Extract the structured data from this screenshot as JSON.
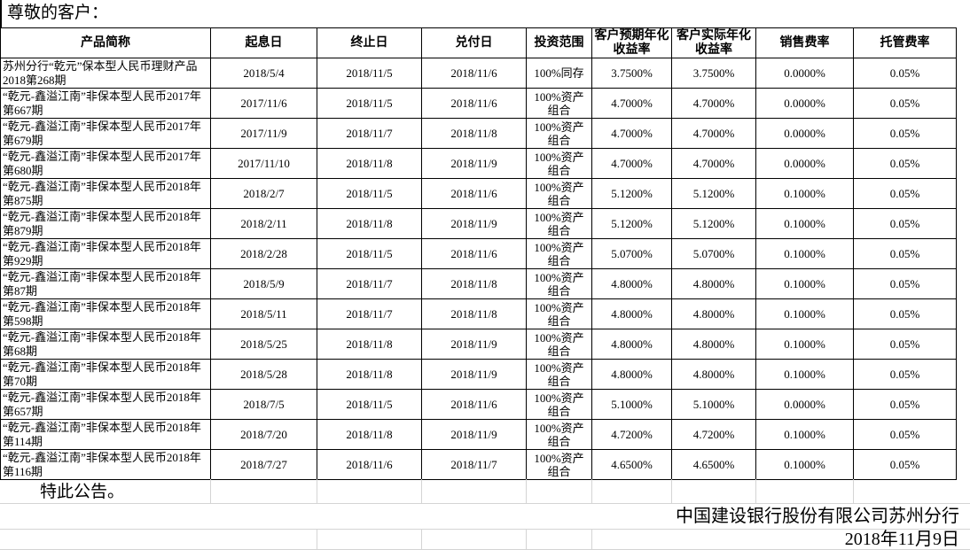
{
  "page": {
    "greeting": "尊敬的客户：",
    "closing": "特此公告。",
    "signature": "中国建设银行股份有限公司苏州分行",
    "date": "2018年11月9日"
  },
  "table": {
    "headers": [
      "产品简称",
      "起息日",
      "终止日",
      "兑付日",
      "投资范围",
      "客户预期年化收益率",
      "客户实际年化收益率",
      "销售费率",
      "托管费率"
    ],
    "rows": [
      [
        "苏州分行“乾元”保本型人民币理财产品2018第268期",
        "2018/5/4",
        "2018/11/5",
        "2018/11/6",
        "100%同存",
        "3.7500%",
        "3.7500%",
        "0.0000%",
        "0.05%"
      ],
      [
        "“乾元-鑫溢江南”非保本型人民币2017年第667期",
        "2017/11/6",
        "2018/11/5",
        "2018/11/6",
        "100%资产组合",
        "4.7000%",
        "4.7000%",
        "0.0000%",
        "0.05%"
      ],
      [
        "“乾元-鑫溢江南”非保本型人民币2017年第679期",
        "2017/11/9",
        "2018/11/7",
        "2018/11/8",
        "100%资产组合",
        "4.7000%",
        "4.7000%",
        "0.0000%",
        "0.05%"
      ],
      [
        "“乾元-鑫溢江南”非保本型人民币2017年第680期",
        "2017/11/10",
        "2018/11/8",
        "2018/11/9",
        "100%资产组合",
        "4.7000%",
        "4.7000%",
        "0.0000%",
        "0.05%"
      ],
      [
        "“乾元-鑫溢江南”非保本型人民币2018年第875期",
        "2018/2/7",
        "2018/11/5",
        "2018/11/6",
        "100%资产组合",
        "5.1200%",
        "5.1200%",
        "0.1000%",
        "0.05%"
      ],
      [
        "“乾元-鑫溢江南”非保本型人民币2018年第879期",
        "2018/2/11",
        "2018/11/8",
        "2018/11/9",
        "100%资产组合",
        "5.1200%",
        "5.1200%",
        "0.1000%",
        "0.05%"
      ],
      [
        "“乾元-鑫溢江南”非保本型人民币2018年第929期",
        "2018/2/28",
        "2018/11/5",
        "2018/11/6",
        "100%资产组合",
        "5.0700%",
        "5.0700%",
        "0.1000%",
        "0.05%"
      ],
      [
        "“乾元-鑫溢江南”非保本型人民币2018年第87期",
        "2018/5/9",
        "2018/11/7",
        "2018/11/8",
        "100%资产组合",
        "4.8000%",
        "4.8000%",
        "0.1000%",
        "0.05%"
      ],
      [
        "“乾元-鑫溢江南”非保本型人民币2018年第598期",
        "2018/5/11",
        "2018/11/7",
        "2018/11/8",
        "100%资产组合",
        "4.8000%",
        "4.8000%",
        "0.1000%",
        "0.05%"
      ],
      [
        "“乾元-鑫溢江南”非保本型人民币2018年第68期",
        "2018/5/25",
        "2018/11/8",
        "2018/11/9",
        "100%资产组合",
        "4.8000%",
        "4.8000%",
        "0.1000%",
        "0.05%"
      ],
      [
        "“乾元-鑫溢江南”非保本型人民币2018年第70期",
        "2018/5/28",
        "2018/11/8",
        "2018/11/9",
        "100%资产组合",
        "4.8000%",
        "4.8000%",
        "0.1000%",
        "0.05%"
      ],
      [
        "“乾元-鑫溢江南”非保本型人民币2018年第657期",
        "2018/7/5",
        "2018/11/5",
        "2018/11/6",
        "100%资产组合",
        "5.1000%",
        "5.1000%",
        "0.0000%",
        "0.05%"
      ],
      [
        "“乾元-鑫溢江南”非保本型人民币2018年第114期",
        "2018/7/20",
        "2018/11/8",
        "2018/11/9",
        "100%资产组合",
        "4.7200%",
        "4.7200%",
        "0.1000%",
        "0.05%"
      ],
      [
        "“乾元-鑫溢江南”非保本型人民币2018年第116期",
        "2018/7/27",
        "2018/11/6",
        "2018/11/7",
        "100%资产组合",
        "4.6500%",
        "4.6500%",
        "0.1000%",
        "0.05%"
      ]
    ]
  }
}
